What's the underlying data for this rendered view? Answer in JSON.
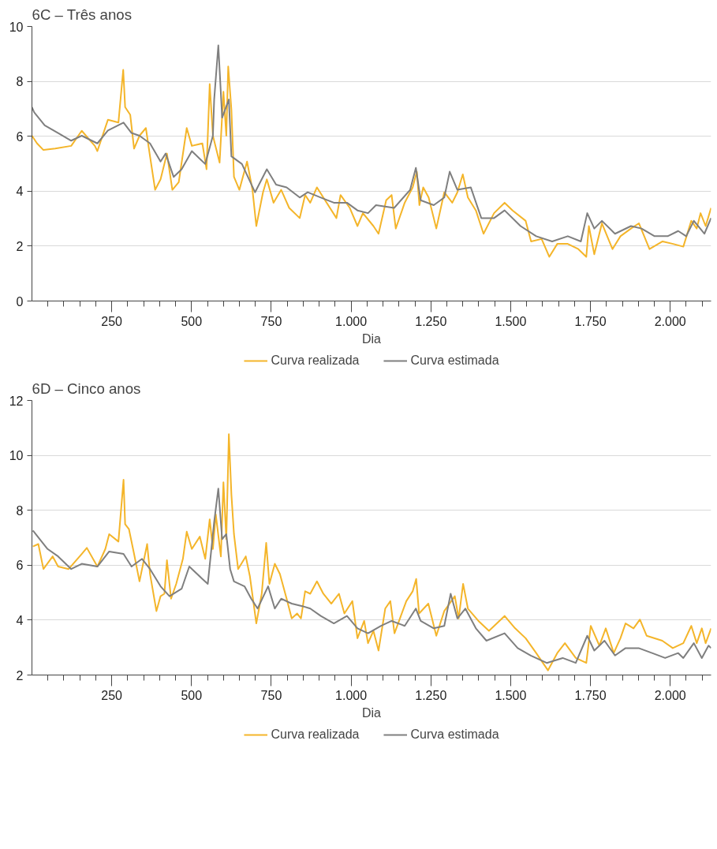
{
  "chart_data": [
    {
      "type": "line",
      "title": "6C – Três anos",
      "xlabel": "Dia",
      "xlim": [
        0,
        2128
      ],
      "ylim": [
        0,
        10
      ],
      "yticks": [
        0,
        2,
        4,
        6,
        8,
        10
      ],
      "xticks": [
        {
          "value": 50,
          "label": null
        },
        {
          "value": 100,
          "label": null
        },
        {
          "value": 150,
          "label": null
        },
        {
          "value": 200,
          "label": null
        },
        250,
        {
          "value": 300,
          "label": null
        },
        {
          "value": 350,
          "label": null
        },
        {
          "value": 400,
          "label": null
        },
        {
          "value": 450,
          "label": null
        },
        500,
        {
          "value": 550,
          "label": null
        },
        {
          "value": 600,
          "label": null
        },
        {
          "value": 650,
          "label": null
        },
        {
          "value": 700,
          "label": null
        },
        750,
        {
          "value": 800,
          "label": null
        },
        {
          "value": 850,
          "label": null
        },
        {
          "value": 900,
          "label": null
        },
        {
          "value": 950,
          "label": null
        },
        {
          "value": 1000,
          "label": "1.000"
        },
        {
          "value": 1050,
          "label": null
        },
        {
          "value": 1100,
          "label": null
        },
        {
          "value": 1150,
          "label": null
        },
        {
          "value": 1200,
          "label": null
        },
        {
          "value": 1250,
          "label": "1.250"
        },
        {
          "value": 1300,
          "label": null
        },
        {
          "value": 1350,
          "label": null
        },
        {
          "value": 1400,
          "label": null
        },
        {
          "value": 1450,
          "label": null
        },
        {
          "value": 1500,
          "label": "1.500"
        },
        {
          "value": 1550,
          "label": null
        },
        {
          "value": 1600,
          "label": null
        },
        {
          "value": 1650,
          "label": null
        },
        {
          "value": 1700,
          "label": null
        },
        {
          "value": 1750,
          "label": "1.750"
        },
        {
          "value": 1800,
          "label": null
        },
        {
          "value": 1850,
          "label": null
        },
        {
          "value": 1900,
          "label": null
        },
        {
          "value": 1950,
          "label": null
        },
        {
          "value": 2000,
          "label": "2.000"
        },
        {
          "value": 2050,
          "label": null
        },
        {
          "value": 2100,
          "label": null
        }
      ],
      "grid": "y",
      "legend": "bottom",
      "marker": "none",
      "line_style": "solid",
      "series": [
        {
          "name": "Curva realizada",
          "color": "#f4b52a",
          "x": [
            0,
            16,
            36,
            73,
            123,
            156,
            197,
            205,
            238,
            271,
            286,
            292,
            308,
            320,
            337,
            357,
            370,
            386,
            403,
            423,
            440,
            460,
            485,
            501,
            534,
            547,
            557,
            567,
            588,
            600,
            609,
            615,
            625,
            633,
            650,
            674,
            691,
            703,
            724,
            736,
            757,
            781,
            806,
            839,
            856,
            872,
            893,
            913,
            954,
            967,
            996,
            1020,
            1037,
            1070,
            1086,
            1110,
            1127,
            1140,
            1168,
            1193,
            1206,
            1214,
            1226,
            1243,
            1267,
            1292,
            1317,
            1333,
            1350,
            1366,
            1391,
            1415,
            1448,
            1481,
            1506,
            1547,
            1564,
            1597,
            1621,
            1646,
            1679,
            1712,
            1737,
            1745,
            1762,
            1786,
            1819,
            1844,
            1877,
            1902,
            1935,
            1976,
            2009,
            2041,
            2066,
            2083,
            2095,
            2111,
            2128
          ],
          "values": [
            6.02,
            5.74,
            5.5,
            5.55,
            5.65,
            6.2,
            5.65,
            5.46,
            6.6,
            6.5,
            8.42,
            7.06,
            6.78,
            5.55,
            6.02,
            6.3,
            5.27,
            4.05,
            4.43,
            5.37,
            4.05,
            4.33,
            6.3,
            5.65,
            5.74,
            4.8,
            7.9,
            6.02,
            5.04,
            7.62,
            6.02,
            8.54,
            6.96,
            4.52,
            4.05,
            5.08,
            4.05,
            2.73,
            3.96,
            4.43,
            3.58,
            4.05,
            3.39,
            3.02,
            3.86,
            3.58,
            4.14,
            3.77,
            3.02,
            3.86,
            3.39,
            2.73,
            3.2,
            2.73,
            2.45,
            3.67,
            3.86,
            2.64,
            3.58,
            4.14,
            4.71,
            3.49,
            4.14,
            3.77,
            2.64,
            3.96,
            3.58,
            3.96,
            4.61,
            3.77,
            3.3,
            2.45,
            3.2,
            3.58,
            3.3,
            2.92,
            2.17,
            2.26,
            1.61,
            2.08,
            2.08,
            1.89,
            1.61,
            2.73,
            1.7,
            2.83,
            1.89,
            2.36,
            2.64,
            2.83,
            1.89,
            2.17,
            2.08,
            1.98,
            2.92,
            2.64,
            3.2,
            2.73,
            3.39
          ]
        },
        {
          "name": "Curva estimada",
          "color": "#7f7f7f",
          "x": [
            0,
            7,
            40,
            82,
            123,
            156,
            205,
            238,
            287,
            312,
            337,
            370,
            403,
            419,
            444,
            469,
            501,
            543,
            567,
            571,
            584,
            596,
            617,
            625,
            658,
            699,
            736,
            765,
            798,
            839,
            864,
            905,
            946,
            987,
            1020,
            1053,
            1078,
            1135,
            1185,
            1203,
            1218,
            1259,
            1292,
            1309,
            1333,
            1375,
            1408,
            1448,
            1481,
            1531,
            1580,
            1630,
            1679,
            1720,
            1740,
            1762,
            1786,
            1827,
            1877,
            1910,
            1951,
            1992,
            2025,
            2050,
            2074,
            2107,
            2128
          ],
          "values": [
            7.06,
            6.87,
            6.4,
            6.12,
            5.84,
            6.02,
            5.74,
            6.21,
            6.5,
            6.12,
            6.02,
            5.74,
            5.08,
            5.37,
            4.52,
            4.8,
            5.46,
            4.99,
            6.02,
            7.34,
            9.31,
            6.68,
            7.34,
            5.27,
            4.99,
            3.96,
            4.8,
            4.24,
            4.14,
            3.77,
            3.96,
            3.77,
            3.58,
            3.58,
            3.3,
            3.2,
            3.49,
            3.39,
            4.05,
            4.85,
            3.67,
            3.49,
            3.77,
            4.71,
            4.05,
            4.14,
            3.02,
            3.02,
            3.3,
            2.73,
            2.36,
            2.17,
            2.36,
            2.17,
            3.2,
            2.64,
            2.92,
            2.45,
            2.73,
            2.64,
            2.36,
            2.36,
            2.55,
            2.36,
            2.92,
            2.45,
            3.02
          ]
        }
      ]
    },
    {
      "type": "line",
      "title": "6D – Cinco anos",
      "xlabel": "Dia",
      "xlim": [
        0,
        2128
      ],
      "ylim": [
        2,
        12
      ],
      "yticks": [
        2,
        4,
        6,
        8,
        10,
        12
      ],
      "xticks": [
        {
          "value": 50,
          "label": null
        },
        {
          "value": 100,
          "label": null
        },
        {
          "value": 150,
          "label": null
        },
        {
          "value": 200,
          "label": null
        },
        250,
        {
          "value": 300,
          "label": null
        },
        {
          "value": 350,
          "label": null
        },
        {
          "value": 400,
          "label": null
        },
        {
          "value": 450,
          "label": null
        },
        500,
        {
          "value": 550,
          "label": null
        },
        {
          "value": 600,
          "label": null
        },
        {
          "value": 650,
          "label": null
        },
        {
          "value": 700,
          "label": null
        },
        750,
        {
          "value": 800,
          "label": null
        },
        {
          "value": 850,
          "label": null
        },
        {
          "value": 900,
          "label": null
        },
        {
          "value": 950,
          "label": null
        },
        {
          "value": 1000,
          "label": "1.000"
        },
        {
          "value": 1050,
          "label": null
        },
        {
          "value": 1100,
          "label": null
        },
        {
          "value": 1150,
          "label": null
        },
        {
          "value": 1200,
          "label": null
        },
        {
          "value": 1250,
          "label": "1.250"
        },
        {
          "value": 1300,
          "label": null
        },
        {
          "value": 1350,
          "label": null
        },
        {
          "value": 1400,
          "label": null
        },
        {
          "value": 1450,
          "label": null
        },
        {
          "value": 1500,
          "label": "1.500"
        },
        {
          "value": 1550,
          "label": null
        },
        {
          "value": 1600,
          "label": null
        },
        {
          "value": 1650,
          "label": null
        },
        {
          "value": 1700,
          "label": null
        },
        {
          "value": 1750,
          "label": "1.750"
        },
        {
          "value": 1800,
          "label": null
        },
        {
          "value": 1850,
          "label": null
        },
        {
          "value": 1900,
          "label": null
        },
        {
          "value": 1950,
          "label": null
        },
        {
          "value": 2000,
          "label": "2.000"
        },
        {
          "value": 2050,
          "label": null
        },
        {
          "value": 2100,
          "label": null
        }
      ],
      "grid": "y",
      "legend": "bottom",
      "marker": "none",
      "line_style": "solid",
      "series": [
        {
          "name": "Curva realizada",
          "color": "#f4b52a",
          "x": [
            3,
            20,
            36,
            65,
            82,
            115,
            156,
            172,
            205,
            230,
            242,
            271,
            287,
            292,
            304,
            320,
            337,
            361,
            370,
            390,
            403,
            415,
            423,
            436,
            452,
            473,
            485,
            501,
            526,
            543,
            557,
            567,
            576,
            592,
            600,
            609,
            617,
            625,
            633,
            646,
            670,
            683,
            703,
            720,
            734,
            744,
            761,
            777,
            798,
            814,
            831,
            843,
            856,
            872,
            893,
            913,
            938,
            962,
            979,
            1004,
            1020,
            1041,
            1053,
            1070,
            1086,
            1107,
            1123,
            1136,
            1173,
            1193,
            1204,
            1213,
            1242,
            1267,
            1292,
            1325,
            1337,
            1351,
            1366,
            1399,
            1432,
            1481,
            1514,
            1547,
            1580,
            1617,
            1646,
            1670,
            1704,
            1737,
            1751,
            1778,
            1798,
            1823,
            1844,
            1860,
            1885,
            1905,
            1926,
            1975,
            2008,
            2041,
            2066,
            2083,
            2099,
            2111,
            2128
          ],
          "values": [
            6.68,
            6.77,
            5.86,
            6.32,
            5.95,
            5.86,
            6.41,
            6.63,
            5.95,
            6.59,
            7.13,
            6.86,
            9.11,
            7.49,
            7.31,
            6.41,
            5.41,
            6.77,
            5.68,
            4.33,
            4.87,
            4.96,
            6.18,
            4.78,
            5.32,
            6.23,
            7.22,
            6.59,
            7.04,
            6.23,
            7.67,
            6.59,
            7.85,
            6.32,
            9.02,
            6.95,
            10.77,
            8.57,
            7.13,
            5.86,
            6.32,
            5.59,
            3.88,
            4.96,
            6.81,
            5.32,
            6.05,
            5.68,
            4.78,
            4.06,
            4.24,
            4.06,
            5.05,
            4.96,
            5.41,
            4.96,
            4.6,
            4.96,
            4.24,
            4.69,
            3.34,
            3.97,
            3.16,
            3.61,
            2.89,
            4.42,
            4.69,
            3.52,
            4.69,
            5.05,
            5.5,
            4.24,
            4.6,
            3.43,
            4.33,
            4.87,
            4.06,
            5.32,
            4.42,
            3.97,
            3.61,
            4.15,
            3.7,
            3.34,
            2.8,
            2.17,
            2.8,
            3.16,
            2.62,
            2.44,
            3.79,
            3.07,
            3.7,
            2.8,
            3.34,
            3.88,
            3.7,
            4.02,
            3.43,
            3.25,
            2.98,
            3.16,
            3.79,
            3.16,
            3.7,
            3.16,
            3.7
          ]
        },
        {
          "name": "Curva estimada",
          "color": "#7f7f7f",
          "x": [
            3,
            24,
            49,
            82,
            123,
            156,
            205,
            242,
            287,
            312,
            345,
            370,
            403,
            431,
            469,
            493,
            534,
            551,
            571,
            584,
            596,
            609,
            621,
            633,
            666,
            687,
            707,
            740,
            761,
            781,
            814,
            847,
            872,
            905,
            946,
            987,
            1020,
            1053,
            1094,
            1127,
            1168,
            1203,
            1218,
            1259,
            1292,
            1312,
            1333,
            1358,
            1391,
            1424,
            1481,
            1522,
            1563,
            1613,
            1663,
            1704,
            1740,
            1762,
            1794,
            1827,
            1860,
            1901,
            1943,
            1984,
            2025,
            2041,
            2074,
            2099,
            2120,
            2128
          ],
          "values": [
            7.26,
            6.95,
            6.59,
            6.32,
            5.86,
            6.05,
            5.95,
            6.5,
            6.41,
            5.95,
            6.23,
            5.86,
            5.23,
            4.87,
            5.14,
            5.95,
            5.5,
            5.32,
            7.58,
            8.79,
            6.95,
            7.13,
            5.86,
            5.41,
            5.23,
            4.78,
            4.42,
            5.23,
            4.42,
            4.78,
            4.6,
            4.51,
            4.42,
            4.15,
            3.88,
            4.15,
            3.7,
            3.52,
            3.79,
            3.97,
            3.79,
            4.42,
            3.97,
            3.7,
            3.79,
            4.96,
            4.06,
            4.42,
            3.7,
            3.25,
            3.52,
            2.98,
            2.71,
            2.44,
            2.62,
            2.44,
            3.43,
            2.89,
            3.25,
            2.71,
            2.98,
            2.98,
            2.8,
            2.62,
            2.8,
            2.62,
            3.16,
            2.62,
            3.07,
            2.98
          ]
        }
      ]
    }
  ]
}
